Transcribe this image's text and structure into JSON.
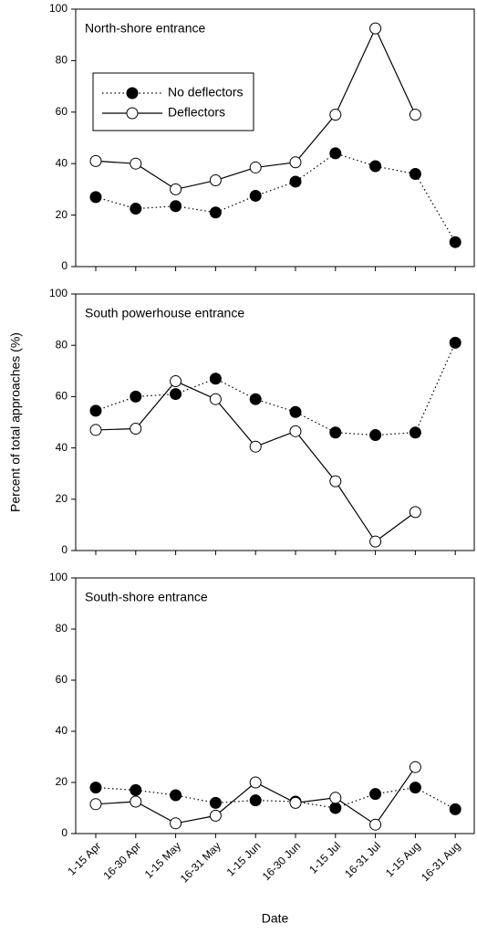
{
  "chart_data": [
    {
      "type": "line",
      "title": "North-shore entrance",
      "categories": [
        null,
        null,
        null,
        null,
        null,
        null,
        null,
        null,
        null,
        null
      ],
      "ylim": [
        0,
        100
      ],
      "yticks": [
        0,
        20,
        40,
        60,
        80,
        100
      ],
      "legend": "upper left",
      "series": [
        {
          "name": "No deflectors",
          "color": "#000000",
          "marker": "filled",
          "line": "dotted",
          "values": [
            27,
            22.5,
            23.5,
            21,
            27.5,
            33,
            44,
            39,
            36,
            9.5
          ]
        },
        {
          "name": "Deflectors",
          "color": "#000000",
          "marker": "open",
          "line": "solid",
          "values": [
            41,
            40,
            30,
            33.5,
            38.5,
            40.5,
            59,
            92.5,
            59,
            null
          ]
        }
      ]
    },
    {
      "type": "line",
      "title": "South powerhouse entrance",
      "ylabel": "Percent of total approaches (%)",
      "categories": [
        null,
        null,
        null,
        null,
        null,
        null,
        null,
        null,
        null,
        null
      ],
      "ylim": [
        0,
        100
      ],
      "yticks": [
        0,
        20,
        40,
        60,
        80,
        100
      ],
      "series": [
        {
          "color": "#000000",
          "marker": "filled",
          "line": "dotted",
          "values": [
            54.5,
            60,
            61,
            67,
            59,
            54,
            46,
            45,
            46,
            81
          ]
        },
        {
          "color": "#000000",
          "marker": "open",
          "line": "solid",
          "values": [
            47,
            47.5,
            66,
            59,
            40.5,
            46.5,
            27,
            3.5,
            15,
            null
          ]
        }
      ]
    },
    {
      "type": "line",
      "title": "South-shore entrance",
      "xlabel": "Date",
      "categories": [
        "1-15 Apr",
        "16-30 Apr",
        "1-15 May",
        "16-31 May",
        "1-15 Jun",
        "16-30 Jun",
        "1-15 Jul",
        "16-31 Jul",
        "1-15 Aug",
        "16-31 Aug"
      ],
      "ylim": [
        0,
        100
      ],
      "yticks": [
        0,
        20,
        40,
        60,
        80,
        100
      ],
      "series": [
        {
          "color": "#000000",
          "marker": "filled",
          "line": "dotted",
          "values": [
            18,
            17,
            15,
            12,
            13,
            12.5,
            10,
            15.5,
            18,
            9.5
          ]
        },
        {
          "color": "#000000",
          "marker": "open",
          "line": "solid",
          "values": [
            11.5,
            12.5,
            4,
            7,
            20,
            12,
            14,
            3.5,
            26,
            null
          ]
        }
      ]
    }
  ]
}
